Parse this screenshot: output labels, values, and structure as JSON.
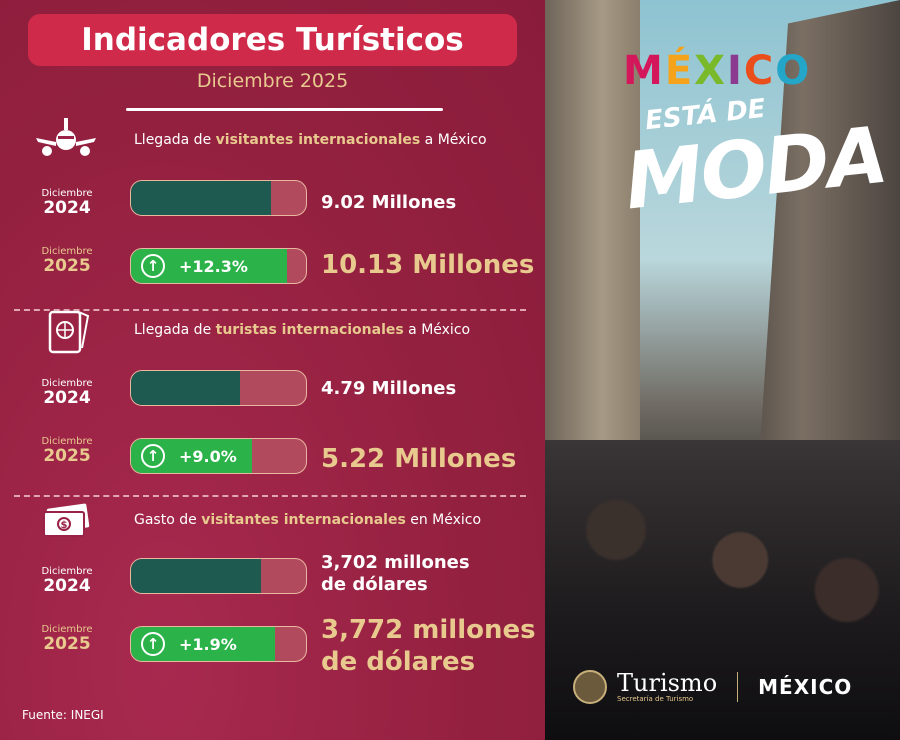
{
  "header": {
    "title": "Indicadores Turísticos",
    "subtitle": "Diciembre 2025"
  },
  "colors": {
    "background": "#9b2247",
    "title_bg": "#d02a4a",
    "gold": "#e8c98e",
    "bar_2024": "#1f5a50",
    "bar_2025": "#2bb34a"
  },
  "sections": [
    {
      "icon": "airplane-icon",
      "title_pre": "Llegada de ",
      "title_bold": "visitantes internacionales",
      "title_post": " a México",
      "prev": {
        "month": "Diciembre",
        "year": "2024",
        "value": "9.02 Millones",
        "fill_percent": 80
      },
      "curr": {
        "month": "Diciembre",
        "year": "2025",
        "change": "+12.3%",
        "value": "10.13 Millones",
        "fill_percent": 89
      }
    },
    {
      "icon": "passport-icon",
      "title_pre": "Llegada de ",
      "title_bold": "turistas internacionales",
      "title_post": " a México",
      "prev": {
        "month": "Diciembre",
        "year": "2024",
        "value": "4.79 Millones",
        "fill_percent": 62
      },
      "curr": {
        "month": "Diciembre",
        "year": "2025",
        "change": "+9.0%",
        "value": "5.22 Millones",
        "fill_percent": 69
      }
    },
    {
      "icon": "money-icon",
      "title_pre": "Gasto de ",
      "title_bold": "visitantes internacionales",
      "title_post": " en México",
      "prev": {
        "month": "Diciembre",
        "year": "2024",
        "value_line1": "3,702 millones",
        "value_line2": "de dólares",
        "fill_percent": 74
      },
      "curr": {
        "month": "Diciembre",
        "year": "2025",
        "change": "+1.9%",
        "value_line1": "3,772 millones",
        "value_line2": "de dólares",
        "fill_percent": 82
      }
    }
  ],
  "source": "Fuente: INEGI",
  "campaign": {
    "logo": "MÉXICO",
    "line1": "ESTÁ DE",
    "line2": "MODA"
  },
  "footer": {
    "brand": "Turismo",
    "brand_sub": "Secretaría de Turismo",
    "country_logo": "MÉXICO"
  }
}
